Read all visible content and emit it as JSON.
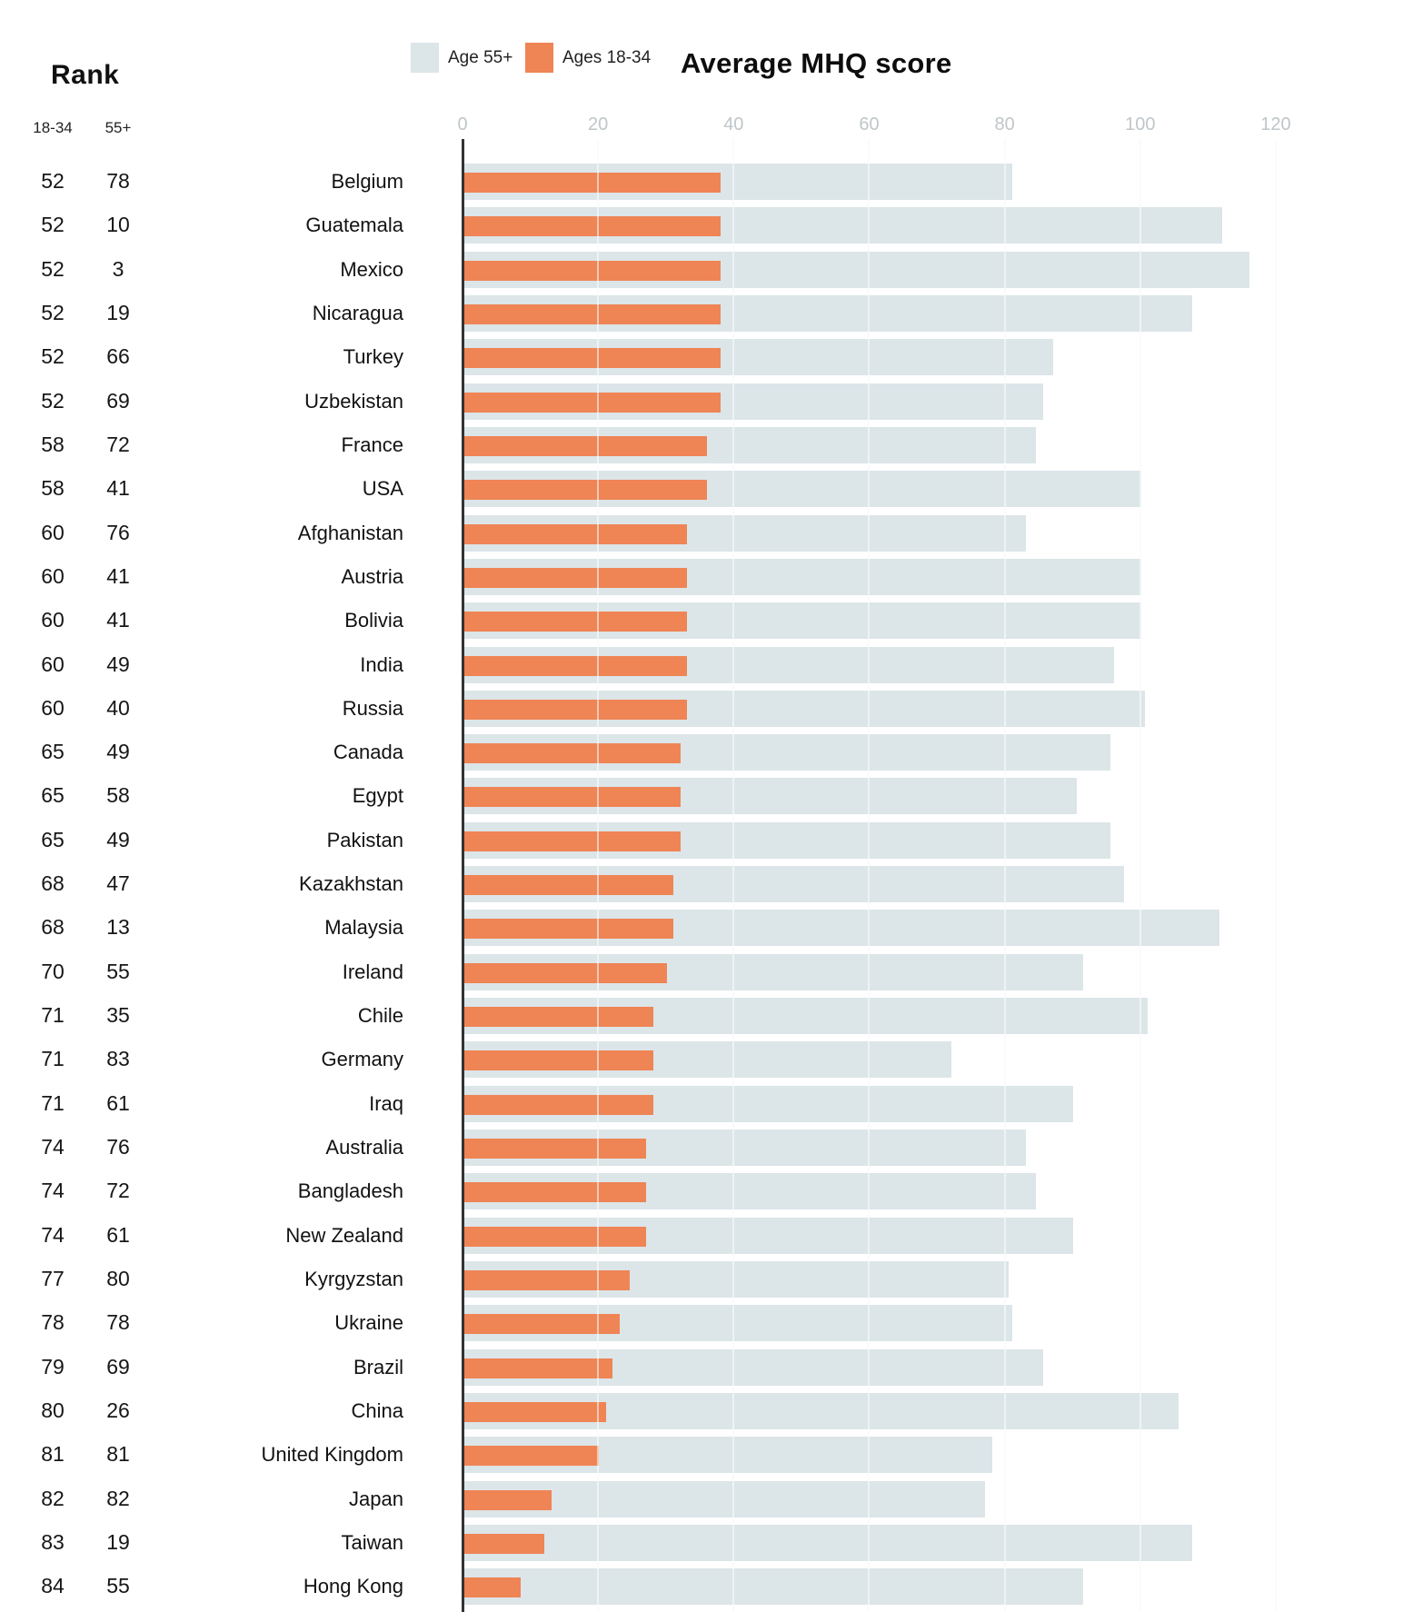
{
  "header": {
    "rank_title": "Rank",
    "col_18_34": "18-34",
    "col_55": "55+",
    "title": "Average MHQ score"
  },
  "legend": [
    {
      "label": "Age 55+",
      "color": "#dce5e8"
    },
    {
      "label": "Ages 18-34",
      "color": "#ef8455"
    }
  ],
  "axis": {
    "ticks": [
      0,
      20,
      40,
      60,
      80,
      100,
      120
    ],
    "tick_color": "#bfc6c9"
  },
  "colors": {
    "age55_bar": "#dce5e8",
    "age18_bar": "#ef8455",
    "axis_line": "#333333"
  },
  "chart_data": {
    "type": "bar",
    "orientation": "horizontal",
    "title": "Average MHQ score",
    "xlabel": "Average MHQ score",
    "xlim": [
      0,
      120
    ],
    "grid": true,
    "legend_position": "top",
    "series_names": [
      "Age 55+",
      "Ages 18-34"
    ],
    "rows": [
      {
        "country": "Belgium",
        "rank_18_34": 52,
        "rank_55": 78,
        "mhq_55": 81,
        "mhq_18_34": 38
      },
      {
        "country": "Guatemala",
        "rank_18_34": 52,
        "rank_55": 10,
        "mhq_55": 112,
        "mhq_18_34": 38
      },
      {
        "country": "Mexico",
        "rank_18_34": 52,
        "rank_55": 3,
        "mhq_55": 116,
        "mhq_18_34": 38
      },
      {
        "country": "Nicaragua",
        "rank_18_34": 52,
        "rank_55": 19,
        "mhq_55": 107.5,
        "mhq_18_34": 38
      },
      {
        "country": "Turkey",
        "rank_18_34": 52,
        "rank_55": 66,
        "mhq_55": 87,
        "mhq_18_34": 38
      },
      {
        "country": "Uzbekistan",
        "rank_18_34": 52,
        "rank_55": 69,
        "mhq_55": 85.5,
        "mhq_18_34": 38
      },
      {
        "country": "France",
        "rank_18_34": 58,
        "rank_55": 72,
        "mhq_55": 84.5,
        "mhq_18_34": 36
      },
      {
        "country": "USA",
        "rank_18_34": 58,
        "rank_55": 41,
        "mhq_55": 100,
        "mhq_18_34": 36
      },
      {
        "country": "Afghanistan",
        "rank_18_34": 60,
        "rank_55": 76,
        "mhq_55": 83,
        "mhq_18_34": 33
      },
      {
        "country": "Austria",
        "rank_18_34": 60,
        "rank_55": 41,
        "mhq_55": 100,
        "mhq_18_34": 33
      },
      {
        "country": "Bolivia",
        "rank_18_34": 60,
        "rank_55": 41,
        "mhq_55": 100,
        "mhq_18_34": 33
      },
      {
        "country": "India",
        "rank_18_34": 60,
        "rank_55": 49,
        "mhq_55": 96,
        "mhq_18_34": 33
      },
      {
        "country": "Russia",
        "rank_18_34": 60,
        "rank_55": 40,
        "mhq_55": 100.5,
        "mhq_18_34": 33
      },
      {
        "country": "Canada",
        "rank_18_34": 65,
        "rank_55": 49,
        "mhq_55": 95.5,
        "mhq_18_34": 32
      },
      {
        "country": "Egypt",
        "rank_18_34": 65,
        "rank_55": 58,
        "mhq_55": 90.5,
        "mhq_18_34": 32
      },
      {
        "country": "Pakistan",
        "rank_18_34": 65,
        "rank_55": 49,
        "mhq_55": 95.5,
        "mhq_18_34": 32
      },
      {
        "country": "Kazakhstan",
        "rank_18_34": 68,
        "rank_55": 47,
        "mhq_55": 97.5,
        "mhq_18_34": 31
      },
      {
        "country": "Malaysia",
        "rank_18_34": 68,
        "rank_55": 13,
        "mhq_55": 111.5,
        "mhq_18_34": 31
      },
      {
        "country": "Ireland",
        "rank_18_34": 70,
        "rank_55": 55,
        "mhq_55": 91.5,
        "mhq_18_34": 30
      },
      {
        "country": "Chile",
        "rank_18_34": 71,
        "rank_55": 35,
        "mhq_55": 101,
        "mhq_18_34": 28
      },
      {
        "country": "Germany",
        "rank_18_34": 71,
        "rank_55": 83,
        "mhq_55": 72,
        "mhq_18_34": 28
      },
      {
        "country": "Iraq",
        "rank_18_34": 71,
        "rank_55": 61,
        "mhq_55": 90,
        "mhq_18_34": 28
      },
      {
        "country": "Australia",
        "rank_18_34": 74,
        "rank_55": 76,
        "mhq_55": 83,
        "mhq_18_34": 27
      },
      {
        "country": "Bangladesh",
        "rank_18_34": 74,
        "rank_55": 72,
        "mhq_55": 84.5,
        "mhq_18_34": 27
      },
      {
        "country": "New Zealand",
        "rank_18_34": 74,
        "rank_55": 61,
        "mhq_55": 90,
        "mhq_18_34": 27
      },
      {
        "country": "Kyrgyzstan",
        "rank_18_34": 77,
        "rank_55": 80,
        "mhq_55": 80.5,
        "mhq_18_34": 24.5
      },
      {
        "country": "Ukraine",
        "rank_18_34": 78,
        "rank_55": 78,
        "mhq_55": 81,
        "mhq_18_34": 23
      },
      {
        "country": "Brazil",
        "rank_18_34": 79,
        "rank_55": 69,
        "mhq_55": 85.5,
        "mhq_18_34": 22
      },
      {
        "country": "China",
        "rank_18_34": 80,
        "rank_55": 26,
        "mhq_55": 105.5,
        "mhq_18_34": 21
      },
      {
        "country": "United Kingdom",
        "rank_18_34": 81,
        "rank_55": 81,
        "mhq_55": 78,
        "mhq_18_34": 20
      },
      {
        "country": "Japan",
        "rank_18_34": 82,
        "rank_55": 82,
        "mhq_55": 77,
        "mhq_18_34": 13
      },
      {
        "country": "Taiwan",
        "rank_18_34": 83,
        "rank_55": 19,
        "mhq_55": 107.5,
        "mhq_18_34": 12
      },
      {
        "country": "Hong Kong",
        "rank_18_34": 84,
        "rank_55": 55,
        "mhq_55": 91.5,
        "mhq_18_34": 8.5
      }
    ]
  }
}
